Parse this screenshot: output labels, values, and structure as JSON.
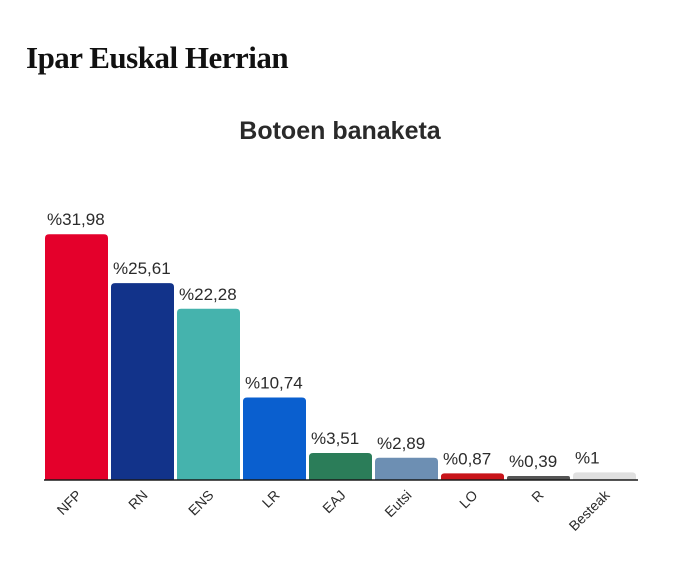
{
  "header": {
    "title": "Ipar Euskal Herrian"
  },
  "chart_data": {
    "type": "bar",
    "title": "Botoen banaketa",
    "xlabel": "",
    "ylabel": "",
    "ylim": [
      0,
      35
    ],
    "grid": false,
    "categories": [
      "NFP",
      "RN",
      "ENS",
      "LR",
      "EAJ",
      "Eutsi",
      "LO",
      "R",
      "Besteak"
    ],
    "values": [
      31.98,
      25.61,
      22.28,
      10.74,
      3.51,
      2.89,
      0.87,
      0.39,
      1
    ],
    "labels": [
      "%31,98",
      "%25,61",
      "%22,28",
      "%10,74",
      "%3,51",
      "%2,89",
      "%0,87",
      "%0,39",
      "%1"
    ],
    "colors": [
      "#e4002b",
      "#12338a",
      "#45b3ad",
      "#0a5fcf",
      "#2b7d59",
      "#6d8fb3",
      "#c8141a",
      "#555555",
      "#e0e0e0"
    ]
  }
}
